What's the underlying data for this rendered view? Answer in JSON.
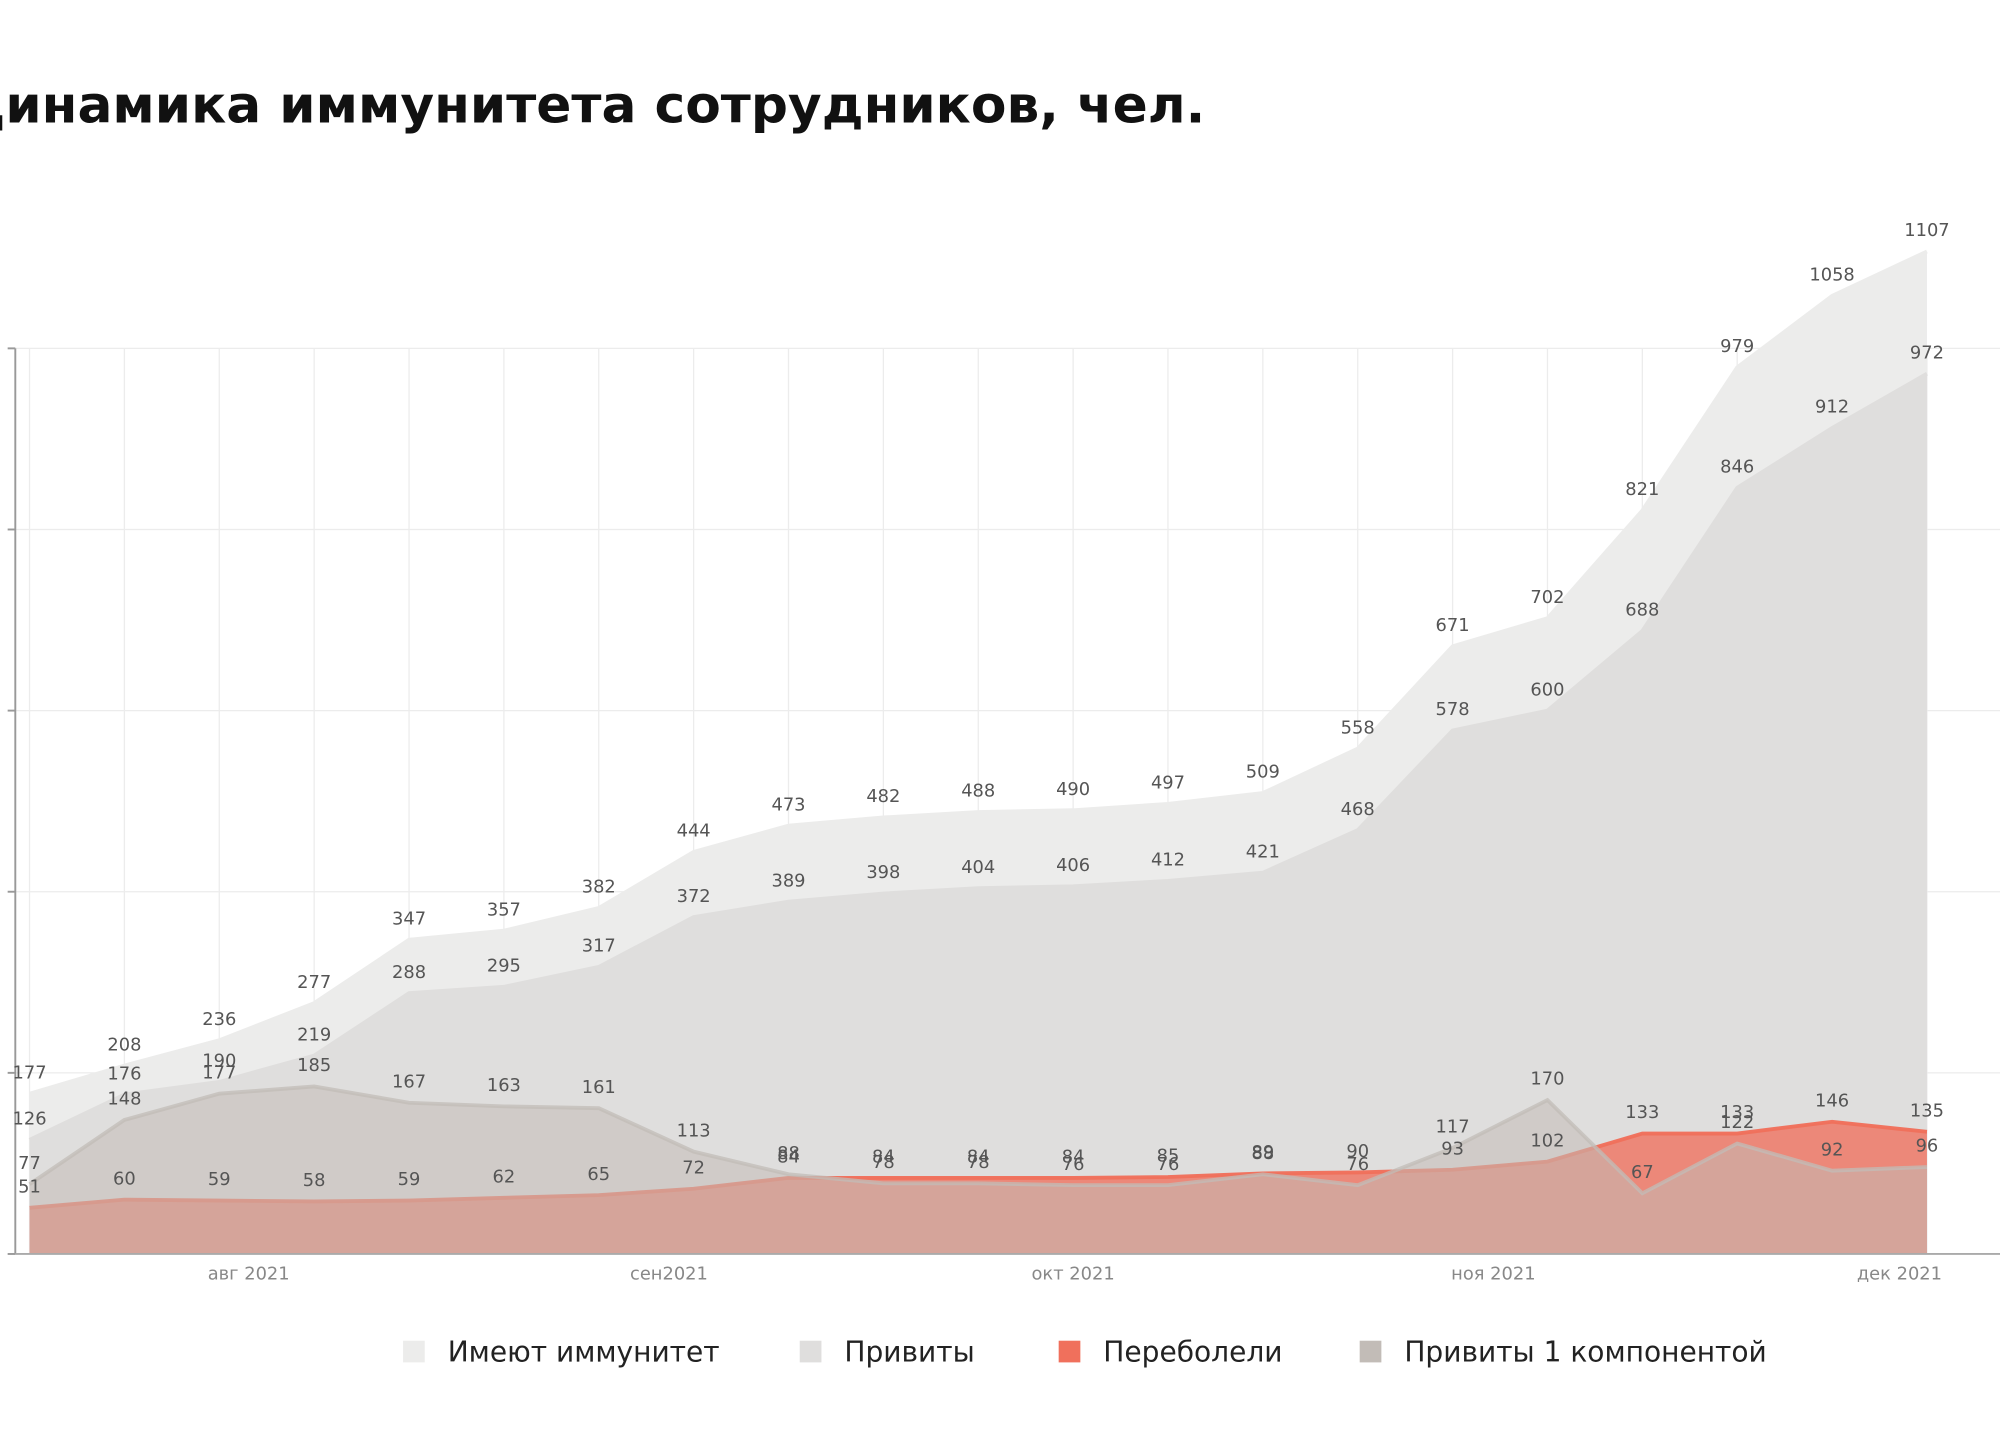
{
  "chart_data": {
    "type": "area",
    "title": "Динамика иммунитета сотрудников, чел.",
    "categories": [
      null,
      null,
      null,
      null,
      null,
      null,
      null,
      null,
      null,
      null,
      null,
      null,
      null,
      null,
      null,
      null,
      null,
      null,
      null,
      null,
      null
    ],
    "xlim": [
      -0.15,
      20.77
    ],
    "xticks": [
      {
        "value": 2.31,
        "label": "авг 2021"
      },
      {
        "value": 6.74,
        "label": "сен2021"
      },
      {
        "value": 11,
        "label": "окт 2021"
      },
      {
        "value": 15.43,
        "label": "ноя 2021"
      },
      {
        "value": 19.71,
        "label": "дек 2021"
      }
    ],
    "ylim": [
      0,
      1200
    ],
    "yticks": [
      0,
      200,
      400,
      600,
      800,
      1000
    ],
    "grid": true,
    "series": [
      {
        "name": "Имеют иммунитет",
        "color": "#ececeb",
        "values": [
          177,
          208,
          236,
          277,
          347,
          357,
          382,
          444,
          473,
          482,
          488,
          490,
          497,
          509,
          558,
          671,
          702,
          821,
          979,
          1058,
          1107
        ]
      },
      {
        "name": "Привиты",
        "color": "#dfdedd",
        "values": [
          126,
          176,
          190,
          219,
          288,
          295,
          317,
          372,
          389,
          398,
          404,
          406,
          412,
          421,
          468,
          578,
          600,
          688,
          846,
          912,
          972
        ]
      },
      {
        "name": "Переболели",
        "color": "#f0705c",
        "values": [
          51,
          60,
          59,
          58,
          59,
          62,
          65,
          72,
          84,
          84,
          84,
          84,
          85,
          89,
          90,
          93,
          102,
          133,
          133,
          146,
          135
        ]
      },
      {
        "name": "Привиты 1 компонентой",
        "color": "#c2bcb7",
        "values": [
          77,
          148,
          177,
          185,
          167,
          163,
          161,
          113,
          88,
          78,
          78,
          76,
          76,
          88,
          76,
          117,
          170,
          67,
          122,
          92,
          96
        ]
      }
    ]
  }
}
